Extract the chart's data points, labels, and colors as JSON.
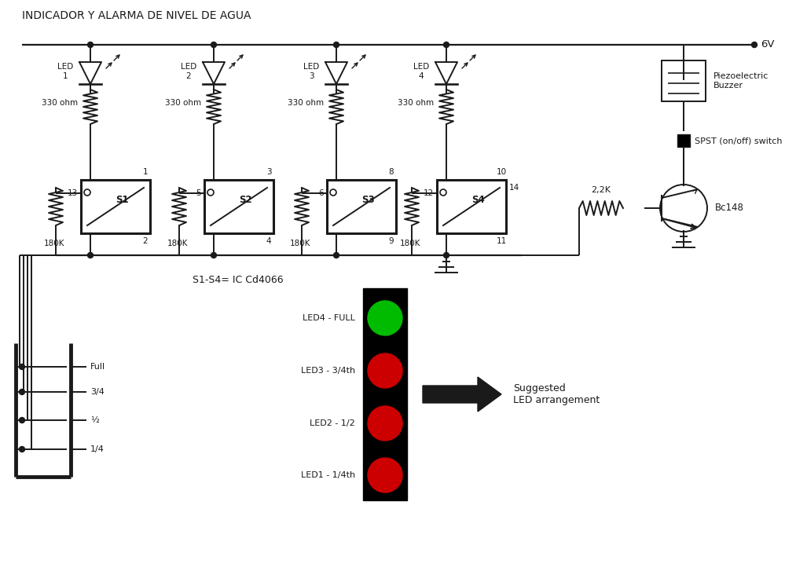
{
  "title": "INDICADOR Y ALARMA DE NIVEL DE AGUA",
  "bg_color": "#ffffff",
  "line_color": "#1a1a1a",
  "title_fontsize": 10,
  "label_fontsize": 8.5,
  "small_fontsize": 7.5,
  "sw_labels": [
    "S1",
    "S2",
    "S3",
    "S4"
  ],
  "pin_tops": [
    "1",
    "3",
    "8",
    "10"
  ],
  "pin_bots": [
    "2",
    "4",
    "9",
    "11"
  ],
  "pin_lefts": [
    "13",
    "5",
    "6",
    "12"
  ],
  "pin_rights": [
    null,
    null,
    null,
    "14"
  ],
  "res_top_label": "330 ohm",
  "res_bot_label": "180K",
  "voltage_label": "6V",
  "buzzer_label": "Piezoelectric\nBuzzer",
  "switch_label": "SPST (on/off) switch",
  "transistor_label": "Bc148",
  "res_transistor_label": "2,2K",
  "ic_label": "S1-S4= IC Cd4066",
  "led_arrangement_labels": [
    "LED4 - FULL",
    "LED3 - 3/4th",
    "LED2 - 1/2",
    "LED1 - 1/4th"
  ],
  "led_colors": [
    "#00bb00",
    "#cc0000",
    "#cc0000",
    "#cc0000"
  ],
  "tank_labels": [
    "Full",
    "3/4",
    "½",
    "1/4"
  ],
  "arrow_label": "Suggested\nLED arrangement",
  "led_col_labels": [
    "LED\n1",
    "LED\n2",
    "LED\n3",
    "LED\n4"
  ]
}
